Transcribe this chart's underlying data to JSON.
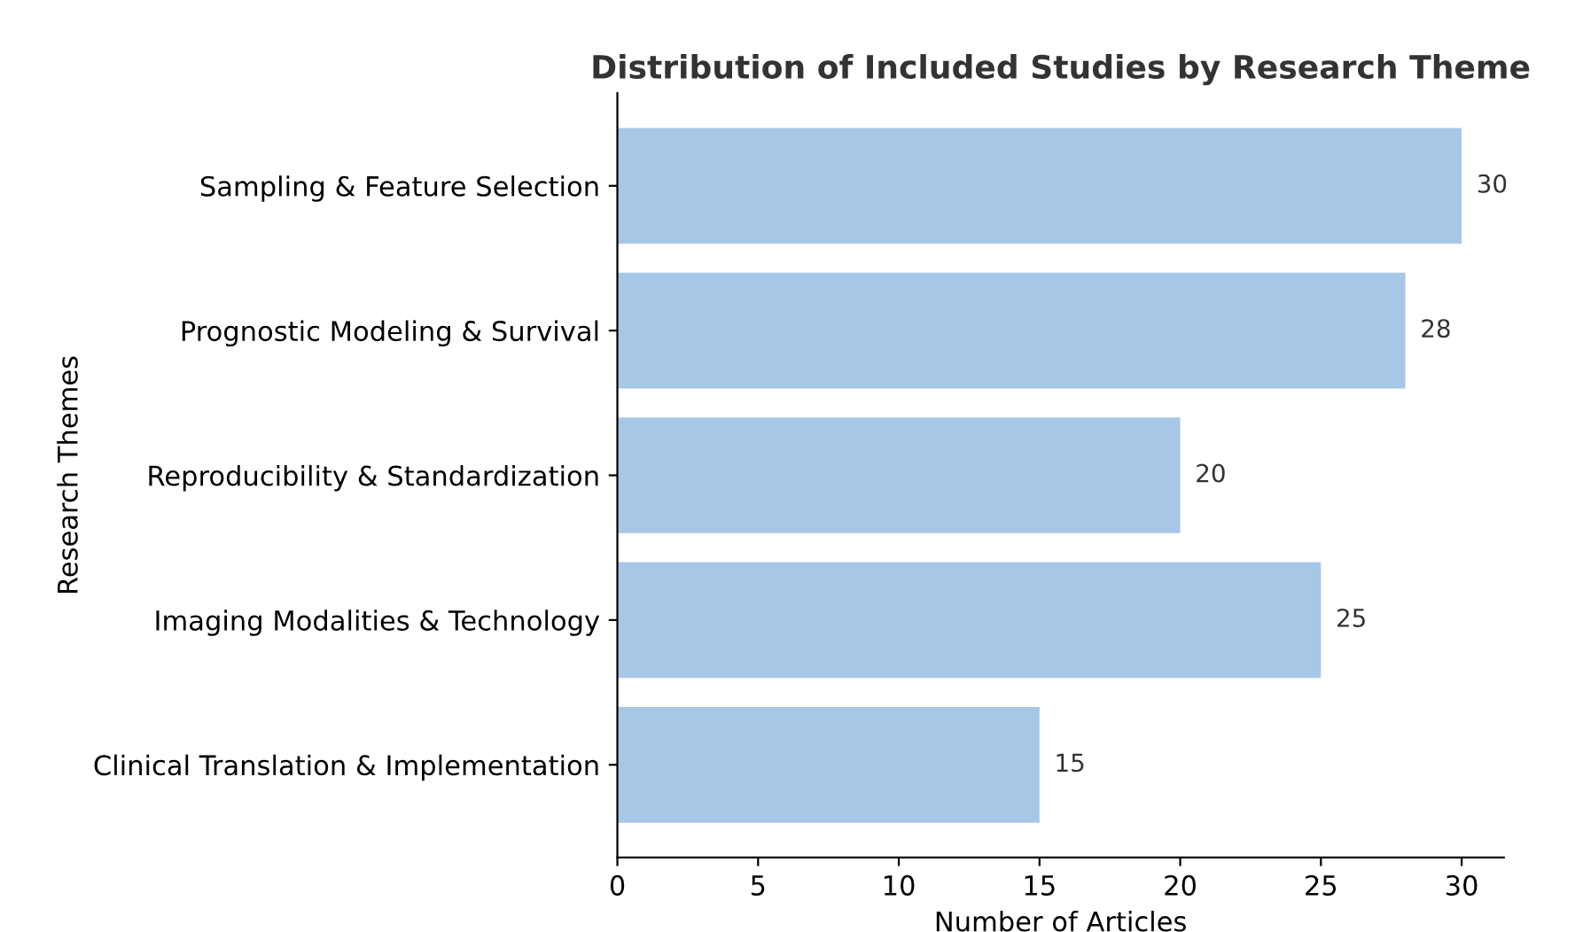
{
  "chart_data": {
    "type": "bar",
    "orientation": "horizontal",
    "title": "Distribution of Included Studies by Research Theme",
    "xlabel": "Number of Articles",
    "ylabel": "Research Themes",
    "categories": [
      "Sampling & Feature Selection",
      "Prognostic Modeling & Survival",
      "Reproducibility & Standardization",
      "Imaging Modalities & Technology",
      "Clinical Translation & Implementation"
    ],
    "values": [
      30,
      28,
      20,
      25,
      15
    ],
    "color": "#a7c7e7",
    "xlim": [
      0,
      31.5
    ],
    "xticks": [
      0,
      5,
      10,
      15,
      20,
      25,
      30
    ],
    "data_labels": true,
    "grid": false,
    "legend": false
  }
}
